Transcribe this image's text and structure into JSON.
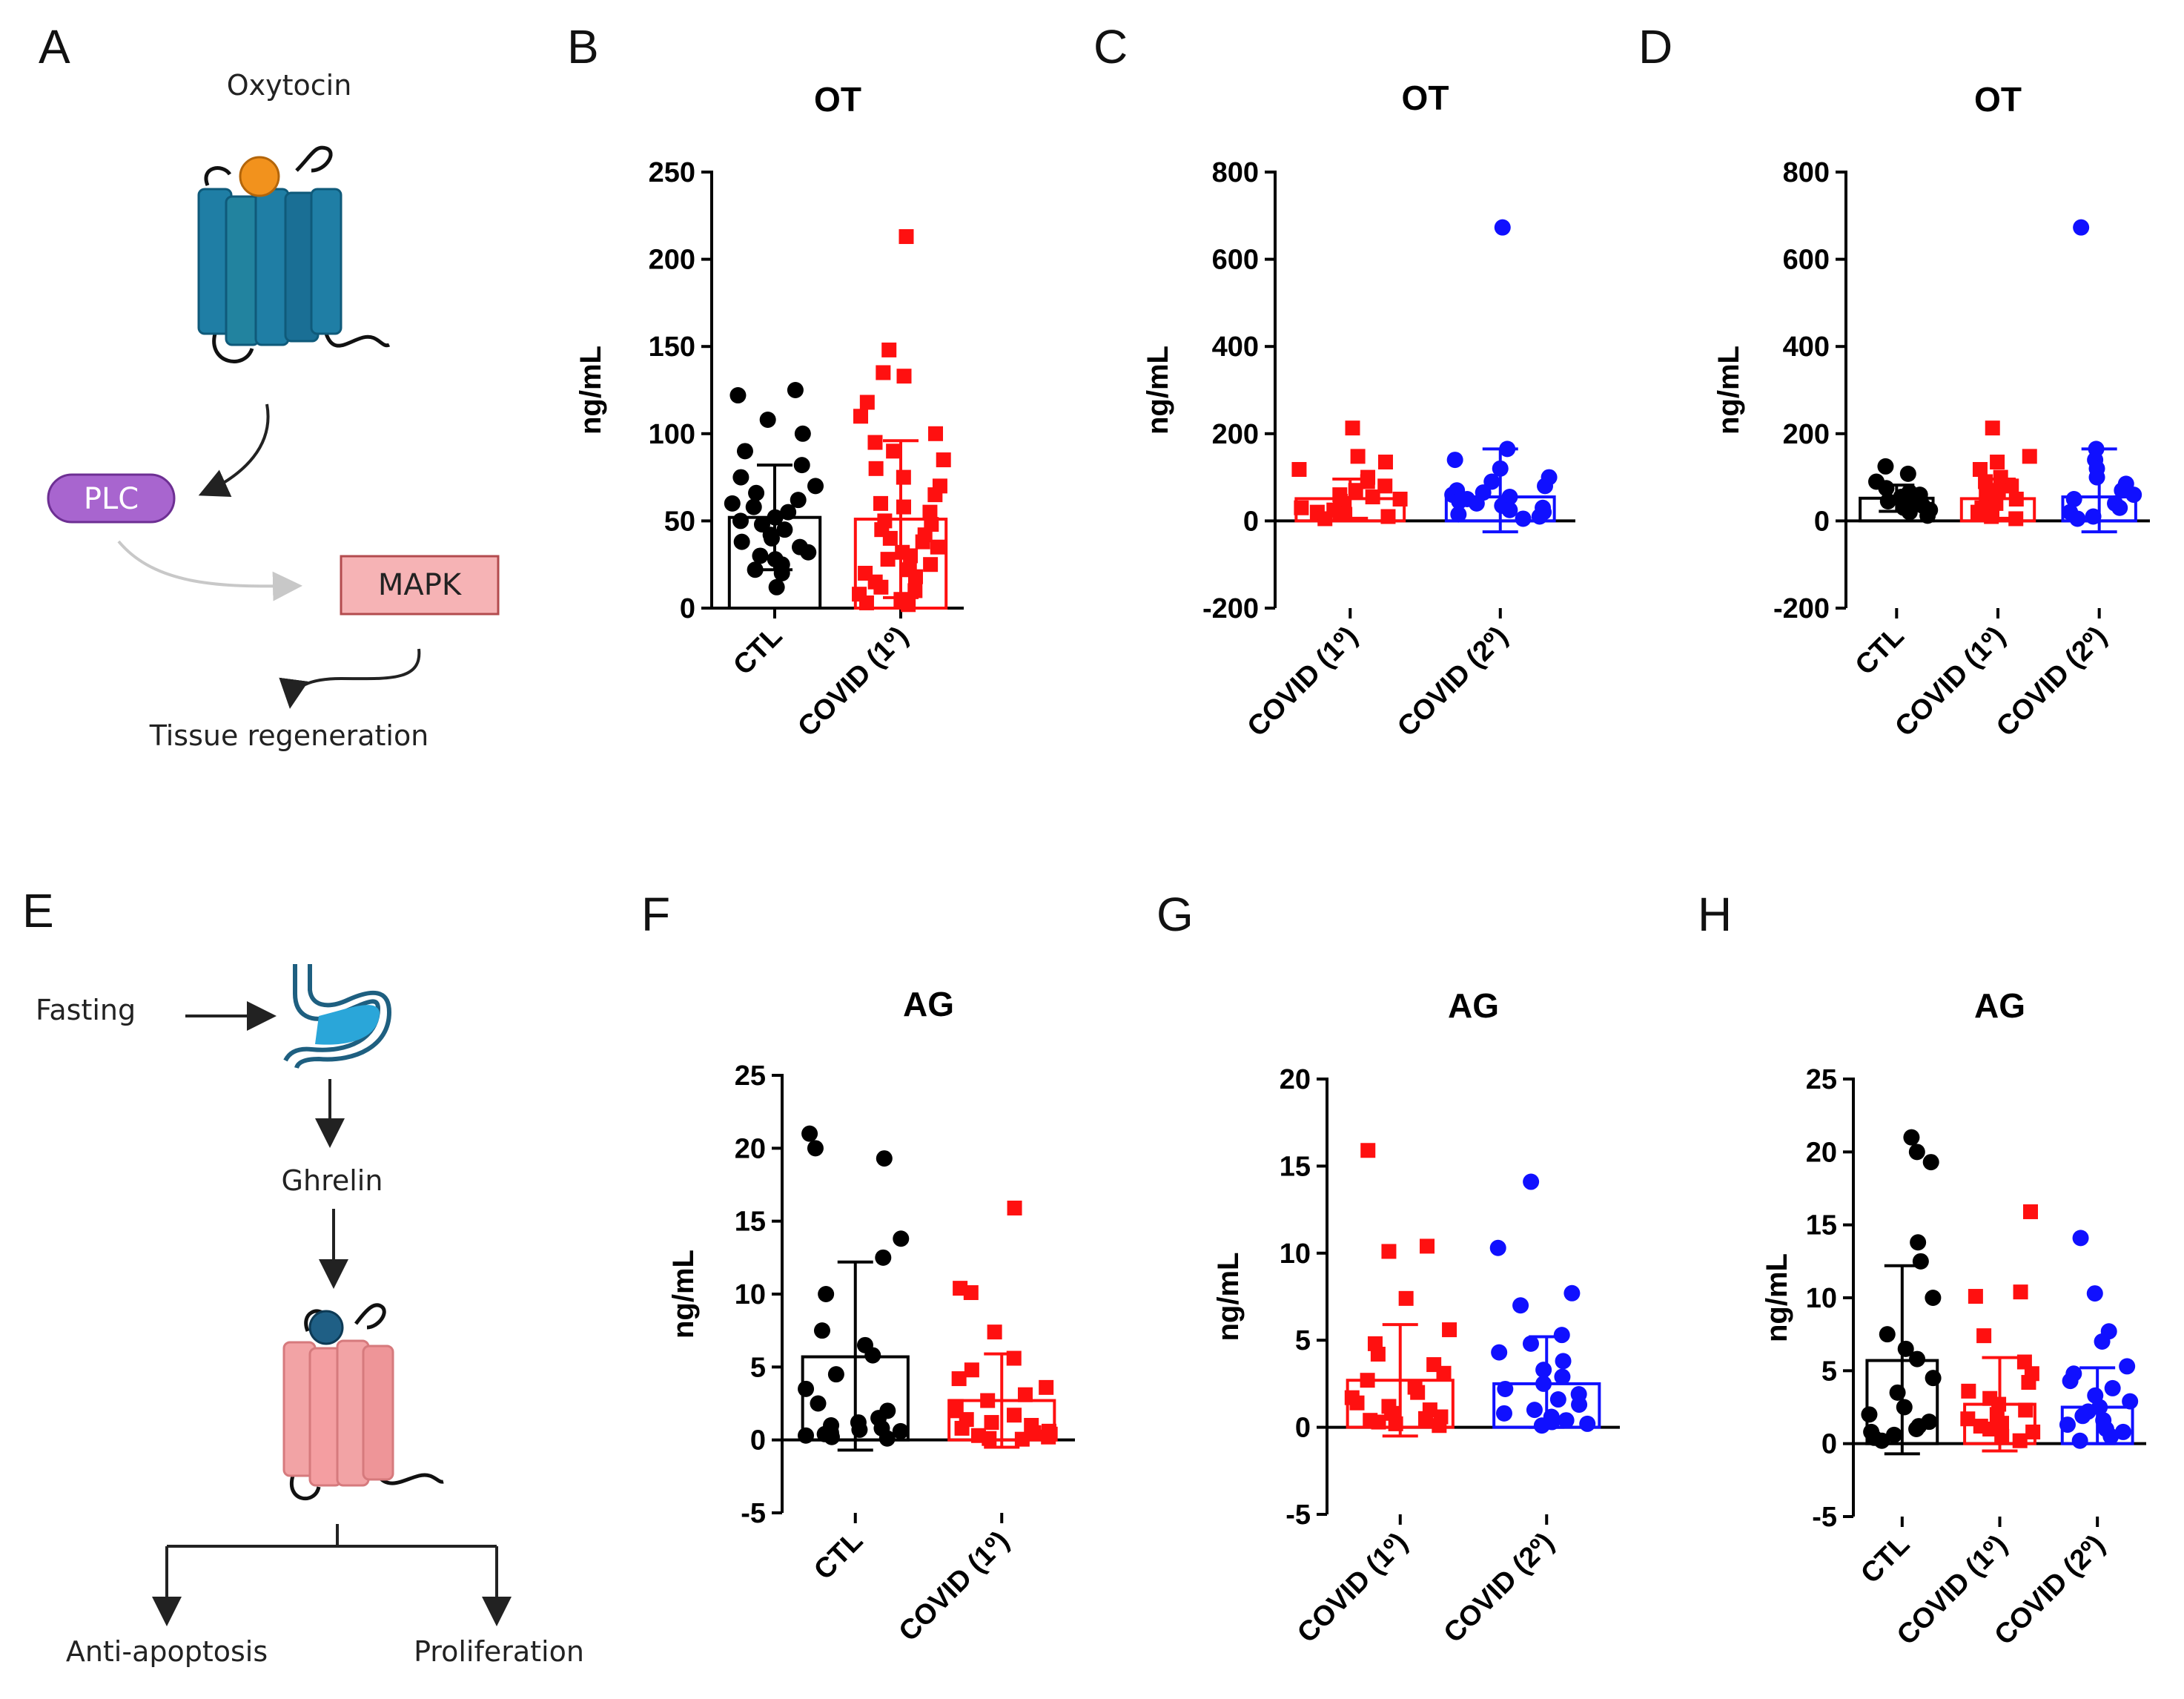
{
  "figure": {
    "panel_letters": [
      "A",
      "B",
      "C",
      "D",
      "E",
      "F",
      "G",
      "H"
    ]
  },
  "diagram_a": {
    "ligand": "Oxytocin",
    "node1": "PLC",
    "node2": "MAPK",
    "outcome": "Tissue regeneration",
    "colors": {
      "receptor": "#1f7ea5",
      "ligand": "#f2921d",
      "plc": "#a865cf",
      "mapk": "#f6b3b5"
    }
  },
  "diagram_e": {
    "stimulus": "Fasting",
    "hormone": "Ghrelin",
    "outcome_left": "Anti-apoptosis",
    "outcome_right": "Proliferation",
    "icons": [
      "stomach-icon",
      "receptor-icon"
    ],
    "colors": {
      "receptor": "#f2a3a5",
      "ligand": "#1f5f85",
      "stomach": "#2aa6d9"
    }
  },
  "series_colors": {
    "CTL": "#000000",
    "COVID (1º)": "#ff1010",
    "COVID (2º)": "#1010ff"
  },
  "chart_data": [
    {
      "panel": "B",
      "type": "bar",
      "title": "OT",
      "ylabel": "ng/mL",
      "ylim": [
        0,
        250
      ],
      "yticks": [
        0,
        50,
        100,
        150,
        200,
        250
      ],
      "categories": [
        "CTL",
        "COVID (1º)"
      ],
      "series": [
        {
          "name": "CTL",
          "mean": 52,
          "sd_upper": 82,
          "sd_lower": 22,
          "marker": "circle",
          "points": [
            125,
            122,
            108,
            100,
            90,
            82,
            75,
            70,
            66,
            62,
            60,
            58,
            55,
            52,
            50,
            48,
            45,
            42,
            40,
            38,
            35,
            32,
            30,
            28,
            25,
            22,
            20,
            12
          ]
        },
        {
          "name": "COVID (1º)",
          "mean": 51,
          "sd_upper": 96,
          "sd_lower": 6,
          "marker": "square",
          "points": [
            213,
            148,
            135,
            133,
            118,
            110,
            100,
            95,
            90,
            85,
            80,
            75,
            70,
            65,
            60,
            58,
            55,
            50,
            48,
            45,
            42,
            40,
            38,
            35,
            32,
            30,
            28,
            25,
            22,
            20,
            18,
            15,
            12,
            10,
            8,
            5,
            3,
            2
          ]
        }
      ]
    },
    {
      "panel": "C",
      "type": "bar",
      "title": "OT",
      "ylabel": "ng/mL",
      "ylim": [
        -200,
        800
      ],
      "yticks": [
        -200,
        0,
        200,
        400,
        600,
        800
      ],
      "categories": [
        "COVID (1º)",
        "COVID (2º)"
      ],
      "series": [
        {
          "name": "COVID (1º)",
          "mean": 51,
          "sd_upper": 96,
          "sd_lower": 6,
          "marker": "square",
          "points": [
            213,
            148,
            135,
            118,
            100,
            90,
            80,
            70,
            60,
            55,
            50,
            45,
            40,
            35,
            30,
            25,
            20,
            15,
            10,
            5
          ]
        },
        {
          "name": "COVID (2º)",
          "mean": 55,
          "sd_upper": 165,
          "sd_lower": -25,
          "marker": "circle",
          "points": [
            673,
            165,
            140,
            120,
            100,
            90,
            80,
            70,
            65,
            60,
            55,
            50,
            45,
            40,
            35,
            30,
            25,
            20,
            15,
            10,
            5
          ]
        }
      ]
    },
    {
      "panel": "D",
      "type": "bar",
      "title": "OT",
      "ylabel": "ng/mL",
      "ylim": [
        -200,
        800
      ],
      "yticks": [
        -200,
        0,
        200,
        400,
        600,
        800
      ],
      "categories": [
        "CTL",
        "COVID (1º)",
        "COVID (2º)"
      ],
      "series": [
        {
          "name": "CTL",
          "mean": 52,
          "sd_upper": 82,
          "sd_lower": 22,
          "marker": "circle",
          "points": [
            125,
            108,
            90,
            75,
            66,
            60,
            55,
            50,
            45,
            40,
            35,
            30,
            25,
            20,
            12
          ]
        },
        {
          "name": "COVID (1º)",
          "mean": 51,
          "sd_upper": 96,
          "sd_lower": 6,
          "marker": "square",
          "points": [
            213,
            148,
            135,
            118,
            100,
            90,
            80,
            70,
            60,
            50,
            40,
            30,
            20,
            10,
            5
          ]
        },
        {
          "name": "COVID (2º)",
          "mean": 55,
          "sd_upper": 165,
          "sd_lower": -25,
          "marker": "circle",
          "points": [
            673,
            165,
            140,
            120,
            100,
            85,
            70,
            60,
            50,
            40,
            30,
            20,
            10,
            5
          ]
        }
      ]
    },
    {
      "panel": "F",
      "type": "bar",
      "title": "AG",
      "ylabel": "ng/mL",
      "ylim": [
        -5,
        25
      ],
      "yticks": [
        -5,
        0,
        5,
        10,
        15,
        20,
        25
      ],
      "categories": [
        "CTL",
        "COVID (1º)"
      ],
      "series": [
        {
          "name": "CTL",
          "mean": 5.7,
          "sd_upper": 12.2,
          "sd_lower": -0.7,
          "marker": "circle",
          "points": [
            21,
            20,
            19.3,
            13.8,
            12.5,
            10,
            7.5,
            6.5,
            5.8,
            4.5,
            3.5,
            2.5,
            2,
            1.5,
            1.2,
            1,
            0.8,
            0.7,
            0.6,
            0.5,
            0.4,
            0.3,
            0.2,
            0.1
          ]
        },
        {
          "name": "COVID (1º)",
          "mean": 2.7,
          "sd_upper": 5.9,
          "sd_lower": -0.5,
          "marker": "square",
          "points": [
            15.9,
            10.4,
            10.1,
            7.4,
            5.6,
            4.8,
            4.2,
            3.6,
            3.1,
            2.7,
            2.3,
            2,
            1.7,
            1.4,
            1.2,
            1,
            0.8,
            0.6,
            0.5,
            0.4,
            0.3,
            0.2,
            0.1,
            0.05
          ]
        }
      ]
    },
    {
      "panel": "G",
      "type": "bar",
      "title": "AG",
      "ylabel": "ng/mL",
      "ylim": [
        -5,
        20
      ],
      "yticks": [
        -5,
        0,
        5,
        10,
        15,
        20
      ],
      "categories": [
        "COVID (1º)",
        "COVID (2º)"
      ],
      "series": [
        {
          "name": "COVID (1º)",
          "mean": 2.7,
          "sd_upper": 5.9,
          "sd_lower": -0.5,
          "marker": "square",
          "points": [
            15.9,
            10.4,
            10.1,
            7.4,
            5.6,
            4.8,
            4.2,
            3.6,
            3.1,
            2.7,
            2.3,
            2,
            1.7,
            1.4,
            1.2,
            1,
            0.8,
            0.6,
            0.5,
            0.4,
            0.3,
            0.2,
            0.1
          ]
        },
        {
          "name": "COVID (2º)",
          "mean": 2.5,
          "sd_upper": 5.2,
          "sd_lower": 0,
          "marker": "circle",
          "points": [
            14.1,
            10.3,
            7.7,
            7.0,
            5.3,
            4.8,
            4.3,
            3.8,
            3.3,
            2.9,
            2.5,
            2.2,
            1.9,
            1.6,
            1.3,
            1.0,
            0.8,
            0.6,
            0.4,
            0.3,
            0.2,
            0.1
          ]
        }
      ]
    },
    {
      "panel": "H",
      "type": "bar",
      "title": "AG",
      "ylabel": "ng/mL",
      "ylim": [
        -5,
        25
      ],
      "yticks": [
        -5,
        0,
        5,
        10,
        15,
        20,
        25
      ],
      "categories": [
        "CTL",
        "COVID (1º)",
        "COVID (2º)"
      ],
      "series": [
        {
          "name": "CTL",
          "mean": 5.7,
          "sd_upper": 12.2,
          "sd_lower": -0.7,
          "marker": "circle",
          "points": [
            21,
            20,
            19.3,
            13.8,
            12.5,
            10,
            7.5,
            6.5,
            5.8,
            4.5,
            3.5,
            2.5,
            2,
            1.5,
            1.2,
            1,
            0.8,
            0.6,
            0.4,
            0.2
          ]
        },
        {
          "name": "COVID (1º)",
          "mean": 2.7,
          "sd_upper": 5.9,
          "sd_lower": -0.5,
          "marker": "square",
          "points": [
            15.9,
            10.4,
            10.1,
            7.4,
            5.6,
            4.8,
            4.2,
            3.6,
            3.1,
            2.7,
            2.3,
            2,
            1.7,
            1.4,
            1.2,
            1,
            0.8,
            0.5,
            0.2
          ]
        },
        {
          "name": "COVID (2º)",
          "mean": 2.5,
          "sd_upper": 5.2,
          "sd_lower": 0,
          "marker": "circle",
          "points": [
            14.1,
            10.3,
            7.7,
            7.0,
            5.3,
            4.8,
            4.3,
            3.8,
            3.3,
            2.9,
            2.5,
            2.2,
            1.9,
            1.6,
            1.3,
            1.0,
            0.8,
            0.5,
            0.2
          ]
        }
      ]
    }
  ]
}
